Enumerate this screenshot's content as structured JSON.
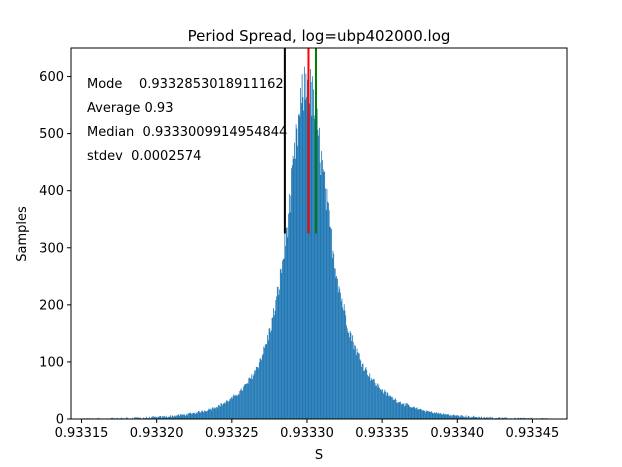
{
  "chart_data": {
    "type": "bar",
    "subtype": "histogram",
    "title": "Period Spread, log=ubp402000.log",
    "xlabel": "S",
    "ylabel": "Samples",
    "xlim": [
      0.933143,
      0.933473
    ],
    "ylim": [
      0,
      650
    ],
    "xticks": [
      0.93315,
      0.9332,
      0.93325,
      0.9333,
      0.93335,
      0.9334,
      0.93345
    ],
    "xtick_labels": [
      "0.93315",
      "0.93320",
      "0.93325",
      "0.93330",
      "0.93335",
      "0.93340",
      "0.93345"
    ],
    "yticks": [
      0,
      100,
      200,
      300,
      400,
      500,
      600
    ],
    "ytick_labels": [
      "0",
      "100",
      "200",
      "300",
      "400",
      "500",
      "600"
    ],
    "grid": false,
    "bar_color": "#1f77b4",
    "histogram": {
      "range": [
        0.93315,
        0.93346
      ],
      "bin_count": 620,
      "shape": {
        "peak_x": 0.9333,
        "peak_count": 585,
        "left_width": 1.7e-05,
        "right_width": 1.95e-05
      }
    },
    "annotations": [
      {
        "name": "mode",
        "text": "Mode    0.9332853018911162",
        "color": "#000000"
      },
      {
        "name": "average",
        "text": "Average 0.93",
        "color": "#008000"
      },
      {
        "name": "median",
        "text": "Median  0.9333009914954844",
        "color": "#ff0000"
      },
      {
        "name": "stdev",
        "text": "stdev  0.0002574",
        "color": "#000000"
      }
    ],
    "vlines": [
      {
        "name": "mode-line",
        "x": 0.9332853,
        "ymin": 325,
        "ymax": 650,
        "color": "#000000"
      },
      {
        "name": "median-line",
        "x": 0.933301,
        "ymin": 325,
        "ymax": 650,
        "color": "#ff0000"
      },
      {
        "name": "average-line",
        "x": 0.933306,
        "ymin": 325,
        "ymax": 650,
        "color": "#008000"
      }
    ]
  }
}
